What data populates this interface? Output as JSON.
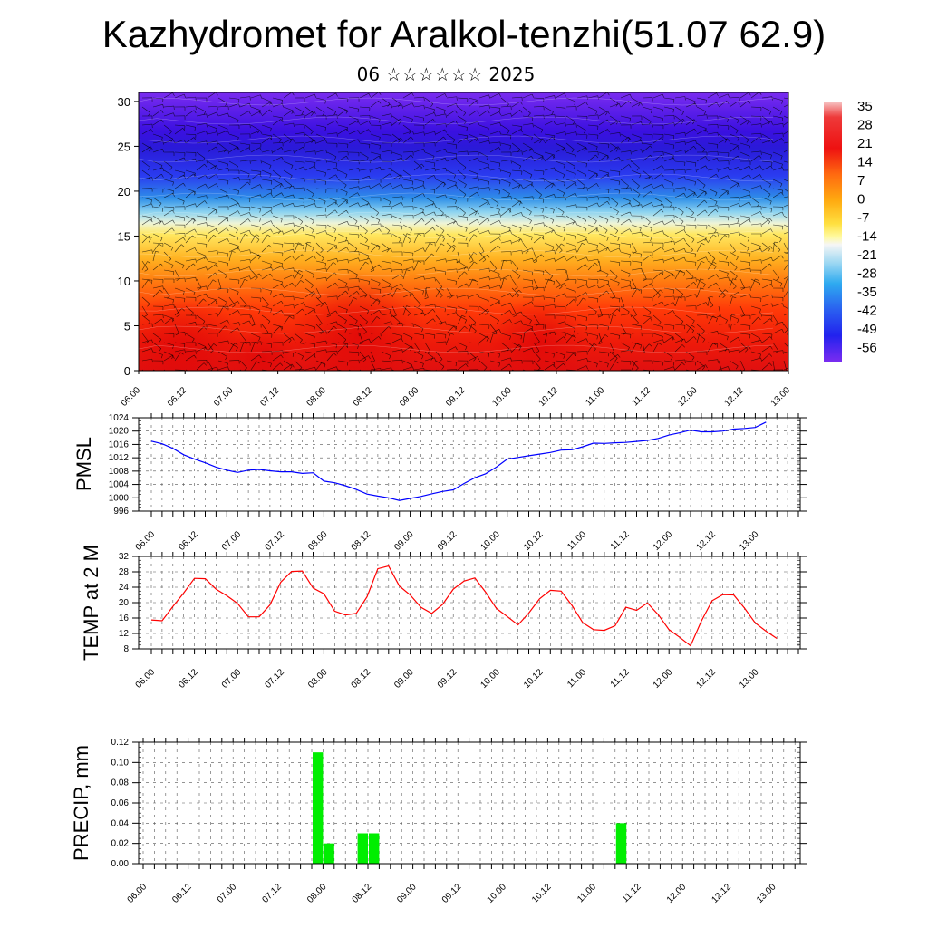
{
  "title": "Kazhydromet for Aralkol-tenzhi(51.07 62.9)",
  "subtitle": "06 ☆☆☆☆☆☆ 2025",
  "colors": {
    "pressure_line": "#0000ff",
    "temperature_line": "#ff0000",
    "precip_bar": "#00ee00"
  },
  "chart_data": [
    {
      "type": "heatmap",
      "name": "cross-section",
      "x_ticks": [
        "06.00",
        "06.12",
        "07.00",
        "07.12",
        "08.00",
        "08.12",
        "09.00",
        "09.12",
        "10.00",
        "10.12",
        "11.00",
        "11.12",
        "12.00",
        "12.12",
        "13.00"
      ],
      "y_ticks": [
        "0",
        "5",
        "10",
        "15",
        "20",
        "25",
        "30"
      ],
      "ylim": [
        0,
        31
      ],
      "colorbar_labels": [
        "35",
        "28",
        "21",
        "14",
        "7",
        "0",
        "-7",
        "-14",
        "-21",
        "-28",
        "-35",
        "-42",
        "-49",
        "-56"
      ],
      "temperature_profile_levels": [
        0,
        5,
        10,
        15,
        17,
        20,
        22,
        25,
        28,
        31
      ],
      "temperature_profile_values": [
        30,
        24,
        14,
        -2,
        -16,
        -36,
        -52,
        -62,
        -58,
        -52
      ]
    },
    {
      "type": "line",
      "name": "pmsl",
      "ylabel": "PMSL",
      "x_ticks": [
        "06.00",
        "06.12",
        "07.00",
        "07.12",
        "08.00",
        "08.12",
        "09.00",
        "09.12",
        "10.00",
        "10.12",
        "11.00",
        "11.12",
        "12.00",
        "12.12",
        "13.00"
      ],
      "y_ticks": [
        "996",
        "1000",
        "1004",
        "1008",
        "1012",
        "1016",
        "1020",
        "1024"
      ],
      "ylim": [
        996,
        1024
      ],
      "grid": true,
      "series": [
        {
          "values": [
            1017,
            1016.2,
            1014.8,
            1012.9,
            1011.6,
            1010.5,
            1009.2,
            1008.3,
            1007.6,
            1008.3,
            1008.5,
            1008.1,
            1007.8,
            1007.8,
            1007.3,
            1007.5,
            1005,
            1004.5,
            1003.6,
            1002.5,
            1001.1,
            1000.5,
            1000,
            999.2,
            999.8,
            1000.4,
            1001.2,
            1001.9,
            1002.4,
            1004.3,
            1006,
            1007.2,
            1009.2,
            1011.6,
            1012.1,
            1012.6,
            1013.1,
            1013.6,
            1014.3,
            1014.4,
            1015.3,
            1016.4,
            1016.3,
            1016.5,
            1016.6,
            1016.9,
            1017.2,
            1017.8,
            1018.8,
            1019.5,
            1020.3,
            1019.8,
            1019.8,
            1020,
            1020.6,
            1020.8,
            1021.1,
            1022.7
          ]
        }
      ]
    },
    {
      "type": "line",
      "name": "temp2m",
      "ylabel": "TEMP at 2 M",
      "x_ticks": [
        "06.00",
        "06.12",
        "07.00",
        "07.12",
        "08.00",
        "08.12",
        "09.00",
        "09.12",
        "10.00",
        "10.12",
        "11.00",
        "11.12",
        "12.00",
        "12.12",
        "13.00"
      ],
      "y_ticks": [
        "8",
        "12",
        "16",
        "20",
        "24",
        "28",
        "32"
      ],
      "ylim": [
        8,
        32
      ],
      "grid": true,
      "series": [
        {
          "values": [
            15.5,
            15.3,
            19,
            22.5,
            26.3,
            26.2,
            23.5,
            21.8,
            19.8,
            16.3,
            16.3,
            19.4,
            25.3,
            28.1,
            28.2,
            23.8,
            22.3,
            17.8,
            16.8,
            17.2,
            21.5,
            28.8,
            29.5,
            24.3,
            22,
            18.8,
            17.2,
            19.5,
            23.5,
            25.6,
            26.4,
            22.7,
            18.5,
            16.4,
            14.2,
            17.3,
            21,
            23.2,
            23,
            19.3,
            14.8,
            13,
            12.8,
            14,
            18.8,
            18,
            19.9,
            16.9,
            13,
            11,
            8.8,
            15.2,
            20.5,
            22.1,
            22,
            18.6,
            14.7,
            12.6,
            10.7
          ]
        }
      ]
    },
    {
      "type": "bar",
      "name": "precip",
      "ylabel": "PRECIP, mm",
      "x_ticks": [
        "06.00",
        "06.12",
        "07.00",
        "07.12",
        "08.00",
        "08.12",
        "09.00",
        "09.12",
        "10.00",
        "10.12",
        "11.00",
        "11.12",
        "12.00",
        "12.12",
        "13.00"
      ],
      "y_ticks": [
        "0.00",
        "0.02",
        "0.04",
        "0.06",
        "0.08",
        "0.10",
        "0.12"
      ],
      "ylim": [
        0,
        0.12
      ],
      "grid": true,
      "series": [
        {
          "bars": [
            {
              "index": 15,
              "value": 0.11
            },
            {
              "index": 16,
              "value": 0.02
            },
            {
              "index": 19,
              "value": 0.03
            },
            {
              "index": 20,
              "value": 0.03
            },
            {
              "index": 42,
              "value": 0.04
            }
          ]
        }
      ]
    }
  ]
}
